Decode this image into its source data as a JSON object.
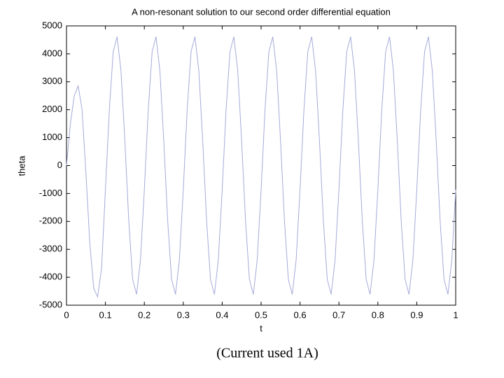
{
  "chart_data": {
    "type": "line",
    "title": "A non-resonant solution to our second order differential equation",
    "xlabel": "t",
    "ylabel": "theta",
    "x": [
      0,
      0.01,
      0.02,
      0.03,
      0.04,
      0.05,
      0.06,
      0.07,
      0.08,
      0.09,
      0.1,
      0.11,
      0.12,
      0.13,
      0.14,
      0.15,
      0.16,
      0.17,
      0.18,
      0.19,
      0.2,
      0.21,
      0.22,
      0.23,
      0.24,
      0.25,
      0.26,
      0.27,
      0.28,
      0.29,
      0.3,
      0.31,
      0.32,
      0.33,
      0.34,
      0.35,
      0.36,
      0.37,
      0.38,
      0.39,
      0.4,
      0.41,
      0.42,
      0.43,
      0.44,
      0.45,
      0.46,
      0.47,
      0.48,
      0.49,
      0.5,
      0.51,
      0.52,
      0.53,
      0.54,
      0.55,
      0.56,
      0.57,
      0.58,
      0.59,
      0.6,
      0.61,
      0.62,
      0.63,
      0.64,
      0.65,
      0.66,
      0.67,
      0.68,
      0.69,
      0.7,
      0.71,
      0.72,
      0.73,
      0.74,
      0.75,
      0.76,
      0.77,
      0.78,
      0.79,
      0.8,
      0.81,
      0.82,
      0.83,
      0.84,
      0.85,
      0.86,
      0.87,
      0.88,
      0.89,
      0.9,
      0.91,
      0.92,
      0.93,
      0.94,
      0.95,
      0.96,
      0.97,
      0.98,
      0.99,
      1
    ],
    "series": [
      {
        "color": "#a4aad8",
        "values": [
          0,
          1500,
          2500,
          2850,
          2000,
          -300,
          -2800,
          -4400,
          -4700,
          -3700,
          -871,
          1980,
          4075,
          4613,
          3389,
          871,
          -1980,
          -4075,
          -4613,
          -3389,
          -871,
          1980,
          4075,
          4613,
          3389,
          871,
          -1980,
          -4075,
          -4613,
          -3389,
          -871,
          1980,
          4075,
          4613,
          3389,
          871,
          -1980,
          -4075,
          -4613,
          -3389,
          -871,
          1980,
          4075,
          4613,
          3389,
          871,
          -1980,
          -4075,
          -4613,
          -3389,
          -871,
          1980,
          4075,
          4613,
          3389,
          871,
          -1980,
          -4075,
          -4613,
          -3389,
          -871,
          1980,
          4075,
          4613,
          3389,
          871,
          -1980,
          -4075,
          -4613,
          -3389,
          -871,
          1980,
          4075,
          4613,
          3389,
          871,
          -1980,
          -4075,
          -4613,
          -3389,
          -871,
          1980,
          4075,
          4613,
          3389,
          871,
          -1980,
          -4075,
          -4613,
          -3389,
          -871,
          1980,
          4075,
          4613,
          3389,
          871,
          -1980,
          -4075,
          -4613,
          -3389,
          -871
        ]
      }
    ],
    "xlim": [
      0,
      1
    ],
    "xticks": [
      0,
      0.1,
      0.2,
      0.3,
      0.4,
      0.5,
      0.6,
      0.7,
      0.8,
      0.9,
      1
    ],
    "ylim": [
      -5000,
      5000
    ],
    "yticks": [
      -5000,
      -4000,
      -3000,
      -2000,
      -1000,
      0,
      1000,
      2000,
      3000,
      4000,
      5000
    ]
  },
  "caption": "(Current used 1A)"
}
